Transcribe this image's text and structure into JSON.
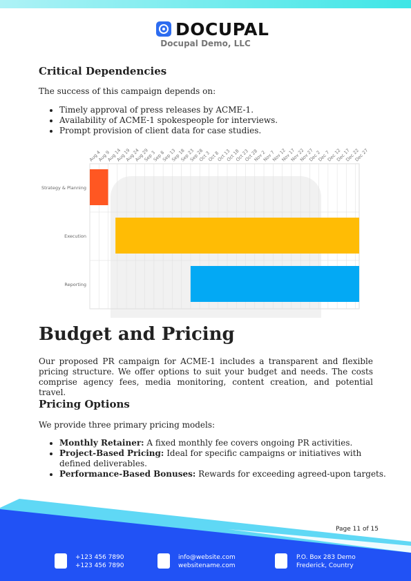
{
  "header": {
    "brand": "DOCUPAL",
    "company": "Docupal Demo, LLC"
  },
  "dependencies": {
    "heading": "Critical Dependencies",
    "intro": "The success of this campaign depends on:",
    "items": [
      "Timely approval of press releases by ACME-1.",
      "Availability of ACME-1 spokespeople for interviews.",
      "Prompt provision of client data for case studies."
    ]
  },
  "gantt": {
    "type": "gantt",
    "xlim": [
      "Aug 4",
      "Dec 29"
    ],
    "xticks": [
      "Aug 4",
      "Aug 9",
      "Aug 14",
      "Aug 19",
      "Aug 24",
      "Aug 29",
      "Sep 3",
      "Sep 8",
      "Sep 13",
      "Sep 18",
      "Sep 23",
      "Sep 28",
      "Oct 3",
      "Oct 8",
      "Oct 13",
      "Oct 18",
      "Oct 23",
      "Oct 28",
      "Nov 2",
      "Nov 7",
      "Nov 12",
      "Nov 17",
      "Nov 22",
      "Nov 27",
      "Dec 2",
      "Dec 7",
      "Dec 12",
      "Dec 17",
      "Dec 22",
      "Dec 27"
    ],
    "grid": true,
    "categories": [
      "Strategy & Planning",
      "Execution",
      "Reporting"
    ],
    "start": [
      "Aug 4",
      "Aug 18",
      "Sep 28"
    ],
    "end": [
      "Aug 14",
      "Dec 29",
      "Dec 29"
    ],
    "colors": [
      "#ff5722",
      "#ffbc05",
      "#03a9f4"
    ]
  },
  "budget": {
    "title": "Budget and Pricing",
    "paragraph": "Our proposed PR campaign for ACME-1 includes a transparent and flexible pricing structure. We offer options to suit your budget and needs. The costs comprise agency fees, media monitoring, content creation, and potential travel."
  },
  "pricing": {
    "heading": "Pricing Options",
    "intro": "We provide three primary pricing models:",
    "items": [
      {
        "term": "Monthly Retainer:",
        "text": "A fixed monthly fee covers ongoing PR activities."
      },
      {
        "term": "Project-Based Pricing:",
        "text": "Ideal for specific campaigns or initiatives with defined deliverables."
      },
      {
        "term": "Performance-Based Bonuses:",
        "text": "Rewards for exceeding agreed-upon targets."
      }
    ]
  },
  "footer": {
    "page": "Page 11 of 15",
    "phone": [
      "+123 456 7890",
      "+123 456 7890"
    ],
    "web": [
      "info@website.com",
      "websitename.com"
    ],
    "address": [
      "P.O. Box 283 Demo",
      "Frederick, Country"
    ]
  }
}
